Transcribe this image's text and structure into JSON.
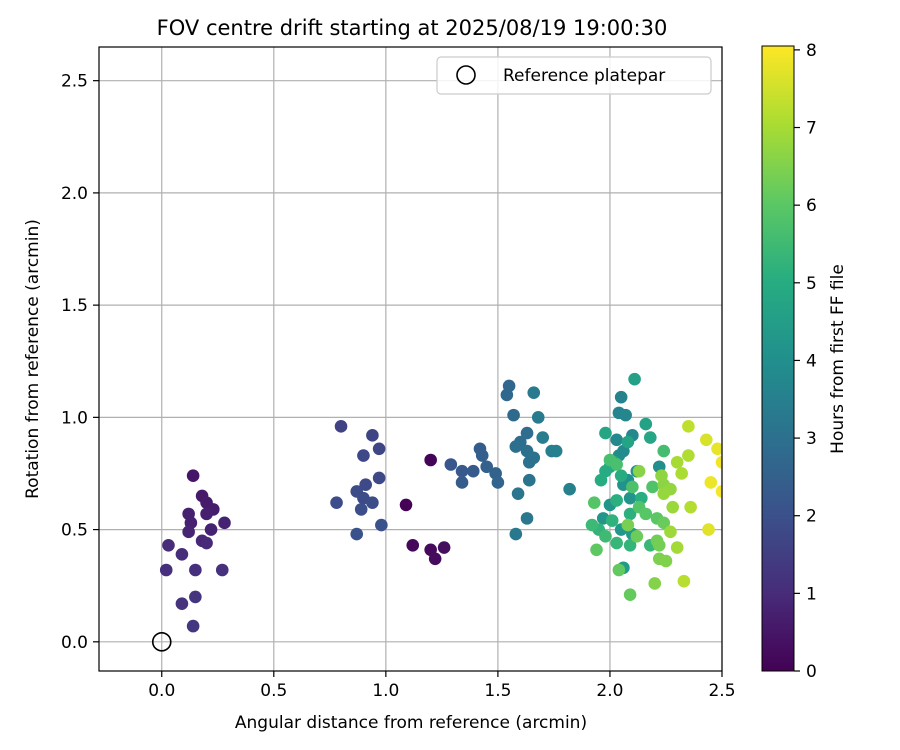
{
  "chart_data": {
    "type": "scatter",
    "title": "FOV centre drift starting at 2025/08/19 19:00:30",
    "xlabel": "Angular distance from reference (arcmin)",
    "ylabel": "Rotation from reference (arcmin)",
    "xlim": [
      -0.28,
      2.5
    ],
    "ylim": [
      -0.13,
      2.65
    ],
    "x_ticks": [
      0.0,
      0.5,
      1.0,
      1.5,
      2.0,
      2.5
    ],
    "x_tick_labels": [
      "0.0",
      "0.5",
      "1.0",
      "1.5",
      "2.0",
      "2.5"
    ],
    "y_ticks": [
      0.0,
      0.5,
      1.0,
      1.5,
      2.0,
      2.5
    ],
    "y_tick_labels": [
      "0.0",
      "0.5",
      "1.0",
      "1.5",
      "2.0",
      "2.5"
    ],
    "grid": true,
    "legend": {
      "placement": "top-right",
      "entries": [
        {
          "label": "Reference platepar",
          "marker": "open-circle"
        }
      ]
    },
    "reference_point": {
      "x": 0.0,
      "y": 0.0
    },
    "colorbar": {
      "label": "Hours from first FF file",
      "range": [
        0,
        8.05
      ],
      "ticks": [
        0,
        1,
        2,
        3,
        4,
        5,
        6,
        7,
        8
      ],
      "tick_labels": [
        "0",
        "1",
        "2",
        "3",
        "4",
        "5",
        "6",
        "7",
        "8"
      ],
      "colormap": "viridis"
    },
    "series": [
      {
        "points": [
          {
            "x": 1.09,
            "y": 0.61,
            "h": 0.05
          },
          {
            "x": 1.2,
            "y": 0.81,
            "h": 0.1
          },
          {
            "x": 1.12,
            "y": 0.43,
            "h": 0.15
          },
          {
            "x": 1.2,
            "y": 0.41,
            "h": 0.2
          },
          {
            "x": 1.22,
            "y": 0.37,
            "h": 0.25
          },
          {
            "x": 1.26,
            "y": 0.42,
            "h": 0.3
          },
          {
            "x": 0.14,
            "y": 0.74,
            "h": 0.5
          },
          {
            "x": 0.18,
            "y": 0.65,
            "h": 0.55
          },
          {
            "x": 0.2,
            "y": 0.62,
            "h": 0.6
          },
          {
            "x": 0.23,
            "y": 0.59,
            "h": 0.65
          },
          {
            "x": 0.2,
            "y": 0.57,
            "h": 0.7
          },
          {
            "x": 0.12,
            "y": 0.57,
            "h": 0.75
          },
          {
            "x": 0.13,
            "y": 0.53,
            "h": 0.75
          },
          {
            "x": 0.28,
            "y": 0.53,
            "h": 0.8
          },
          {
            "x": 0.22,
            "y": 0.5,
            "h": 0.8
          },
          {
            "x": 0.12,
            "y": 0.49,
            "h": 0.85
          },
          {
            "x": 0.18,
            "y": 0.45,
            "h": 0.9
          },
          {
            "x": 0.2,
            "y": 0.44,
            "h": 0.95
          },
          {
            "x": 0.03,
            "y": 0.43,
            "h": 1.0
          },
          {
            "x": 0.09,
            "y": 0.39,
            "h": 1.05
          },
          {
            "x": 0.02,
            "y": 0.32,
            "h": 1.1
          },
          {
            "x": 0.15,
            "y": 0.32,
            "h": 1.1
          },
          {
            "x": 0.27,
            "y": 0.32,
            "h": 1.15
          },
          {
            "x": 0.09,
            "y": 0.17,
            "h": 1.2
          },
          {
            "x": 0.15,
            "y": 0.2,
            "h": 1.25
          },
          {
            "x": 0.14,
            "y": 0.07,
            "h": 1.3
          },
          {
            "x": 0.8,
            "y": 0.96,
            "h": 1.6
          },
          {
            "x": 0.94,
            "y": 0.92,
            "h": 1.65
          },
          {
            "x": 0.97,
            "y": 0.86,
            "h": 1.7
          },
          {
            "x": 0.9,
            "y": 0.83,
            "h": 1.75
          },
          {
            "x": 0.97,
            "y": 0.73,
            "h": 1.8
          },
          {
            "x": 0.91,
            "y": 0.7,
            "h": 1.8
          },
          {
            "x": 0.87,
            "y": 0.67,
            "h": 1.85
          },
          {
            "x": 0.9,
            "y": 0.64,
            "h": 1.85
          },
          {
            "x": 0.78,
            "y": 0.62,
            "h": 1.9
          },
          {
            "x": 0.94,
            "y": 0.62,
            "h": 1.9
          },
          {
            "x": 0.89,
            "y": 0.59,
            "h": 1.95
          },
          {
            "x": 0.98,
            "y": 0.52,
            "h": 2.0
          },
          {
            "x": 0.87,
            "y": 0.48,
            "h": 2.05
          },
          {
            "x": 1.29,
            "y": 0.79,
            "h": 2.2
          },
          {
            "x": 1.34,
            "y": 0.76,
            "h": 2.25
          },
          {
            "x": 1.39,
            "y": 0.76,
            "h": 2.3
          },
          {
            "x": 1.34,
            "y": 0.71,
            "h": 2.35
          },
          {
            "x": 1.42,
            "y": 0.86,
            "h": 2.4
          },
          {
            "x": 1.43,
            "y": 0.83,
            "h": 2.45
          },
          {
            "x": 1.45,
            "y": 0.78,
            "h": 2.5
          },
          {
            "x": 1.49,
            "y": 0.75,
            "h": 2.55
          },
          {
            "x": 1.5,
            "y": 0.71,
            "h": 2.6
          },
          {
            "x": 1.55,
            "y": 1.14,
            "h": 2.7
          },
          {
            "x": 1.54,
            "y": 1.1,
            "h": 2.75
          },
          {
            "x": 1.57,
            "y": 1.01,
            "h": 2.8
          },
          {
            "x": 1.63,
            "y": 0.93,
            "h": 2.85
          },
          {
            "x": 1.6,
            "y": 0.89,
            "h": 2.9
          },
          {
            "x": 1.58,
            "y": 0.87,
            "h": 2.95
          },
          {
            "x": 1.63,
            "y": 0.85,
            "h": 3.0
          },
          {
            "x": 1.64,
            "y": 0.8,
            "h": 3.05
          },
          {
            "x": 1.66,
            "y": 0.82,
            "h": 3.05
          },
          {
            "x": 1.64,
            "y": 0.72,
            "h": 3.1
          },
          {
            "x": 1.59,
            "y": 0.66,
            "h": 3.15
          },
          {
            "x": 1.63,
            "y": 0.55,
            "h": 3.2
          },
          {
            "x": 1.58,
            "y": 0.48,
            "h": 3.25
          },
          {
            "x": 1.66,
            "y": 1.11,
            "h": 3.3
          },
          {
            "x": 1.68,
            "y": 1.0,
            "h": 3.35
          },
          {
            "x": 1.7,
            "y": 0.91,
            "h": 3.4
          },
          {
            "x": 1.74,
            "y": 0.85,
            "h": 3.45
          },
          {
            "x": 1.76,
            "y": 0.85,
            "h": 3.5
          },
          {
            "x": 1.82,
            "y": 0.68,
            "h": 3.55
          },
          {
            "x": 2.05,
            "y": 1.09,
            "h": 3.6
          },
          {
            "x": 2.04,
            "y": 1.02,
            "h": 3.65
          },
          {
            "x": 2.07,
            "y": 1.01,
            "h": 3.7
          },
          {
            "x": 2.1,
            "y": 0.92,
            "h": 3.75
          },
          {
            "x": 2.03,
            "y": 0.9,
            "h": 3.8
          },
          {
            "x": 2.06,
            "y": 0.85,
            "h": 3.85
          },
          {
            "x": 2.04,
            "y": 0.83,
            "h": 3.9
          },
          {
            "x": 2.22,
            "y": 0.78,
            "h": 3.95
          },
          {
            "x": 2.12,
            "y": 0.76,
            "h": 4.0
          },
          {
            "x": 2.08,
            "y": 0.72,
            "h": 4.05
          },
          {
            "x": 2.06,
            "y": 0.7,
            "h": 4.1
          },
          {
            "x": 2.09,
            "y": 0.64,
            "h": 4.15
          },
          {
            "x": 2.0,
            "y": 0.61,
            "h": 4.2
          },
          {
            "x": 1.97,
            "y": 0.55,
            "h": 4.25
          },
          {
            "x": 2.05,
            "y": 0.5,
            "h": 4.3
          },
          {
            "x": 2.1,
            "y": 0.48,
            "h": 4.35
          },
          {
            "x": 2.06,
            "y": 0.33,
            "h": 4.4
          },
          {
            "x": 2.11,
            "y": 1.17,
            "h": 4.6
          },
          {
            "x": 2.16,
            "y": 0.97,
            "h": 4.65
          },
          {
            "x": 2.08,
            "y": 0.89,
            "h": 4.7
          },
          {
            "x": 1.98,
            "y": 0.93,
            "h": 4.75
          },
          {
            "x": 2.18,
            "y": 0.91,
            "h": 4.8
          },
          {
            "x": 2.02,
            "y": 0.8,
            "h": 4.85
          },
          {
            "x": 2.0,
            "y": 0.78,
            "h": 4.9
          },
          {
            "x": 1.98,
            "y": 0.76,
            "h": 4.95
          },
          {
            "x": 2.05,
            "y": 0.74,
            "h": 5.0
          },
          {
            "x": 1.96,
            "y": 0.72,
            "h": 5.0
          },
          {
            "x": 2.14,
            "y": 0.64,
            "h": 5.05
          },
          {
            "x": 2.03,
            "y": 0.63,
            "h": 5.1
          },
          {
            "x": 2.09,
            "y": 0.57,
            "h": 5.15
          },
          {
            "x": 2.01,
            "y": 0.54,
            "h": 5.2
          },
          {
            "x": 1.95,
            "y": 0.5,
            "h": 5.25
          },
          {
            "x": 2.09,
            "y": 0.43,
            "h": 5.3
          },
          {
            "x": 2.03,
            "y": 0.44,
            "h": 5.35
          },
          {
            "x": 2.18,
            "y": 0.43,
            "h": 5.4
          },
          {
            "x": 1.92,
            "y": 0.52,
            "h": 5.45
          },
          {
            "x": 1.98,
            "y": 0.47,
            "h": 5.5
          },
          {
            "x": 2.24,
            "y": 0.85,
            "h": 5.6
          },
          {
            "x": 2.0,
            "y": 0.81,
            "h": 5.65
          },
          {
            "x": 2.03,
            "y": 0.79,
            "h": 5.7
          },
          {
            "x": 2.1,
            "y": 0.69,
            "h": 5.75
          },
          {
            "x": 2.19,
            "y": 0.69,
            "h": 5.8
          },
          {
            "x": 2.13,
            "y": 0.6,
            "h": 5.85
          },
          {
            "x": 1.93,
            "y": 0.62,
            "h": 5.9
          },
          {
            "x": 2.16,
            "y": 0.57,
            "h": 5.95
          },
          {
            "x": 2.21,
            "y": 0.55,
            "h": 6.0
          },
          {
            "x": 1.94,
            "y": 0.41,
            "h": 6.05
          },
          {
            "x": 2.04,
            "y": 0.32,
            "h": 6.1
          },
          {
            "x": 2.09,
            "y": 0.21,
            "h": 6.15
          },
          {
            "x": 2.24,
            "y": 0.53,
            "h": 6.2
          },
          {
            "x": 2.12,
            "y": 0.47,
            "h": 6.25
          },
          {
            "x": 2.21,
            "y": 0.45,
            "h": 6.3
          },
          {
            "x": 2.22,
            "y": 0.43,
            "h": 6.35
          },
          {
            "x": 2.08,
            "y": 0.52,
            "h": 6.4
          },
          {
            "x": 2.22,
            "y": 0.37,
            "h": 6.45
          },
          {
            "x": 2.25,
            "y": 0.36,
            "h": 6.5
          },
          {
            "x": 2.2,
            "y": 0.26,
            "h": 6.55
          },
          {
            "x": 2.13,
            "y": 0.76,
            "h": 6.6
          },
          {
            "x": 2.24,
            "y": 0.7,
            "h": 6.65
          },
          {
            "x": 2.23,
            "y": 0.74,
            "h": 6.7
          },
          {
            "x": 2.27,
            "y": 0.68,
            "h": 6.75
          },
          {
            "x": 2.24,
            "y": 0.66,
            "h": 6.8
          },
          {
            "x": 2.28,
            "y": 0.6,
            "h": 6.85
          },
          {
            "x": 2.27,
            "y": 0.49,
            "h": 6.9
          },
          {
            "x": 2.3,
            "y": 0.42,
            "h": 6.95
          },
          {
            "x": 2.3,
            "y": 0.8,
            "h": 7.0
          },
          {
            "x": 2.32,
            "y": 0.75,
            "h": 7.05
          },
          {
            "x": 2.35,
            "y": 0.83,
            "h": 7.1
          },
          {
            "x": 2.36,
            "y": 0.6,
            "h": 7.15
          },
          {
            "x": 2.33,
            "y": 0.27,
            "h": 7.2
          },
          {
            "x": 2.35,
            "y": 0.96,
            "h": 7.3
          },
          {
            "x": 2.43,
            "y": 0.9,
            "h": 7.6
          },
          {
            "x": 2.48,
            "y": 0.86,
            "h": 7.8
          },
          {
            "x": 2.5,
            "y": 0.8,
            "h": 7.9
          },
          {
            "x": 2.45,
            "y": 0.71,
            "h": 7.85
          },
          {
            "x": 2.44,
            "y": 0.5,
            "h": 7.7
          },
          {
            "x": 2.5,
            "y": 0.67,
            "h": 7.95
          }
        ]
      }
    ]
  }
}
